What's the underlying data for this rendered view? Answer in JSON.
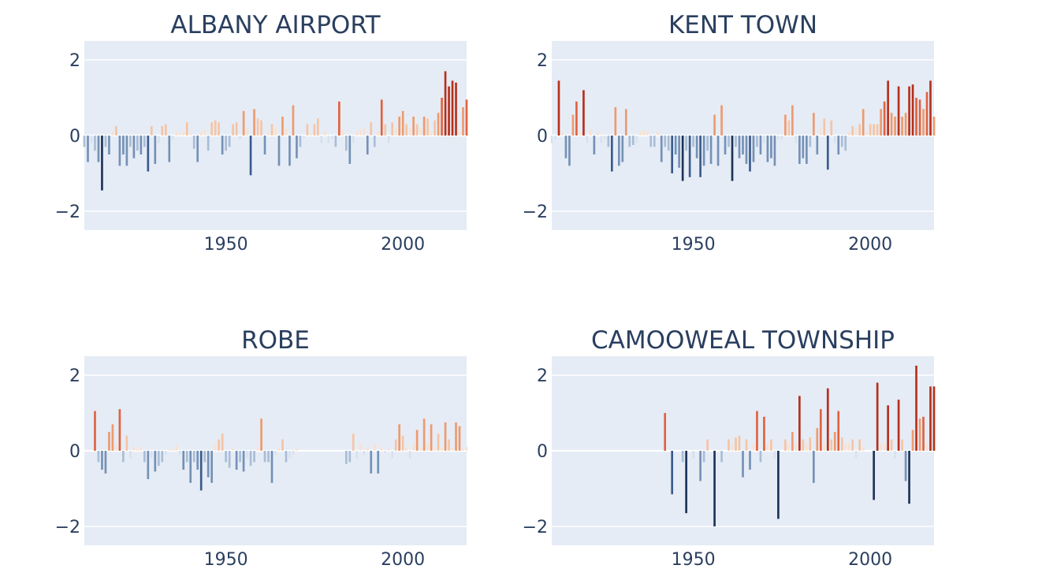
{
  "colors": {
    "plot_background": "#e5ecf6",
    "gridline": "#ffffff",
    "text": "#2a3f5f",
    "scale_negative": [
      "#1e3358",
      "#3b5b8c",
      "#7591b6",
      "#a9bdd6",
      "#d8e2ee"
    ],
    "scale_positive": [
      "#fbe1cf",
      "#f6c4a4",
      "#ee9a6e",
      "#df633f",
      "#b6301b"
    ]
  },
  "chart_data": [
    {
      "type": "bar",
      "title": "ALBANY AIRPORT",
      "xlabel": "",
      "ylabel": "",
      "xlim": [
        1910,
        2018
      ],
      "ylim": [
        -2.5,
        2.5
      ],
      "xticks": [
        1950,
        2000
      ],
      "yticks": [
        -2,
        0,
        2
      ],
      "ytick_labels": [
        "−2",
        "0",
        "2"
      ],
      "grid": true,
      "x": [
        1910,
        1911,
        1912,
        1913,
        1914,
        1915,
        1916,
        1917,
        1918,
        1919,
        1920,
        1921,
        1922,
        1923,
        1924,
        1925,
        1926,
        1927,
        1928,
        1929,
        1930,
        1931,
        1932,
        1933,
        1934,
        1935,
        1936,
        1937,
        1938,
        1939,
        1940,
        1941,
        1942,
        1943,
        1944,
        1945,
        1946,
        1947,
        1948,
        1949,
        1950,
        1951,
        1952,
        1953,
        1954,
        1955,
        1956,
        1957,
        1958,
        1959,
        1960,
        1961,
        1962,
        1963,
        1964,
        1965,
        1966,
        1967,
        1968,
        1969,
        1970,
        1971,
        1972,
        1973,
        1974,
        1975,
        1976,
        1977,
        1978,
        1979,
        1980,
        1981,
        1982,
        1983,
        1984,
        1985,
        1986,
        1987,
        1988,
        1989,
        1990,
        1991,
        1992,
        1993,
        1994,
        1995,
        1996,
        1997,
        1998,
        1999,
        2000,
        2001,
        2002,
        2003,
        2004,
        2005,
        2006,
        2007,
        2008,
        2009,
        2010,
        2011,
        2012,
        2013,
        2014,
        2015,
        2016,
        2017,
        2018
      ],
      "values": [
        -0.3,
        -0.7,
        -0.2,
        -0.4,
        -0.7,
        -1.45,
        -0.3,
        -0.5,
        0.1,
        0.25,
        -0.8,
        -0.5,
        -0.8,
        -0.3,
        -0.6,
        -0.4,
        -0.5,
        -0.3,
        -0.95,
        0.25,
        -0.75,
        -0.2,
        0.25,
        0.3,
        -0.7,
        -0.1,
        0.1,
        0.05,
        0.1,
        0.35,
        0.05,
        -0.35,
        -0.7,
        0.1,
        0.15,
        -0.4,
        0.35,
        0.4,
        0.35,
        -0.5,
        -0.4,
        -0.3,
        0.3,
        0.35,
        -0.1,
        0.65,
        0.2,
        -1.05,
        0.7,
        0.45,
        0.4,
        -0.5,
        0.1,
        0.3,
        0.2,
        -0.8,
        0.5,
        0.2,
        -0.8,
        0.8,
        -0.6,
        -0.3,
        -0.05,
        0.3,
        0.05,
        0.3,
        0.45,
        -0.2,
        0.1,
        -0.2,
        -0.1,
        -0.3,
        0.9,
        0.15,
        -0.4,
        -0.75,
        -0.2,
        0.1,
        0.15,
        0.2,
        -0.5,
        0.35,
        -0.3,
        0.1,
        0.95,
        0.3,
        -0.2,
        0.35,
        0.2,
        0.5,
        0.65,
        0.3,
        0.2,
        0.5,
        0.3,
        0.2,
        0.5,
        0.45,
        0.1,
        0.4,
        0.6,
        1.0,
        1.7,
        1.3,
        1.45,
        1.4,
        0.1,
        0.75,
        0.95
      ]
    },
    {
      "type": "bar",
      "title": "KENT TOWN",
      "xlabel": "",
      "ylabel": "",
      "xlim": [
        1910,
        2018
      ],
      "ylim": [
        -2.5,
        2.5
      ],
      "xticks": [
        1950,
        2000
      ],
      "yticks": [
        -2,
        0,
        2
      ],
      "ytick_labels": [
        "−2",
        "0",
        "2"
      ],
      "grid": true,
      "x": [
        1910,
        1911,
        1912,
        1913,
        1914,
        1915,
        1916,
        1917,
        1918,
        1919,
        1920,
        1921,
        1922,
        1923,
        1924,
        1925,
        1926,
        1927,
        1928,
        1929,
        1930,
        1931,
        1932,
        1933,
        1934,
        1935,
        1936,
        1937,
        1938,
        1939,
        1940,
        1941,
        1942,
        1943,
        1944,
        1945,
        1946,
        1947,
        1948,
        1949,
        1950,
        1951,
        1952,
        1953,
        1954,
        1955,
        1956,
        1957,
        1958,
        1959,
        1960,
        1961,
        1962,
        1963,
        1964,
        1965,
        1966,
        1967,
        1968,
        1969,
        1970,
        1971,
        1972,
        1973,
        1974,
        1975,
        1976,
        1977,
        1978,
        1979,
        1980,
        1981,
        1982,
        1983,
        1984,
        1985,
        1986,
        1987,
        1988,
        1989,
        1990,
        1991,
        1992,
        1993,
        1994,
        1995,
        1996,
        1997,
        1998,
        1999,
        2000,
        2001,
        2002,
        2003,
        2004,
        2005,
        2006,
        2007,
        2008,
        2009,
        2010,
        2011,
        2012,
        2013,
        2014,
        2015,
        2016,
        2017,
        2018
      ],
      "values": [
        -0.2,
        -0.1,
        1.45,
        0.1,
        -0.6,
        -0.8,
        0.55,
        0.9,
        0.1,
        1.2,
        -0.2,
        0.15,
        -0.5,
        0.1,
        -0.2,
        -0.1,
        -0.3,
        -0.95,
        0.75,
        -0.8,
        -0.7,
        0.7,
        -0.3,
        -0.25,
        -0.2,
        0.1,
        0.15,
        0.1,
        -0.3,
        -0.3,
        0.1,
        -0.7,
        -0.3,
        -0.4,
        -1.0,
        -0.5,
        -0.85,
        -1.2,
        -0.4,
        -1.1,
        -0.3,
        -0.6,
        -1.1,
        -0.8,
        -0.4,
        -0.75,
        0.55,
        -0.8,
        0.8,
        -0.5,
        -0.3,
        -1.2,
        -0.3,
        -0.6,
        -0.5,
        -0.75,
        -0.95,
        -0.7,
        -0.3,
        -0.5,
        -0.2,
        -0.7,
        -0.6,
        -0.8,
        -0.1,
        -0.1,
        0.55,
        0.4,
        0.8,
        -0.2,
        -0.75,
        -0.6,
        -0.75,
        -0.3,
        0.6,
        -0.5,
        0.2,
        0.45,
        -0.9,
        0.4,
        -0.2,
        -0.5,
        -0.3,
        -0.4,
        0.1,
        0.25,
        0.2,
        0.3,
        0.7,
        0.1,
        0.3,
        0.3,
        0.3,
        0.7,
        0.9,
        1.45,
        0.6,
        0.5,
        1.3,
        0.5,
        0.6,
        1.3,
        1.35,
        1.0,
        0.95,
        0.7,
        1.15,
        1.45,
        0.5
      ]
    },
    {
      "type": "bar",
      "title": "ROBE",
      "xlabel": "",
      "ylabel": "",
      "xlim": [
        1910,
        2018
      ],
      "ylim": [
        -2.5,
        2.5
      ],
      "xticks": [
        1950,
        2000
      ],
      "yticks": [
        -2,
        0,
        2
      ],
      "ytick_labels": [
        "−2",
        "0",
        "2"
      ],
      "grid": true,
      "x": [
        1913,
        1914,
        1915,
        1916,
        1917,
        1918,
        1919,
        1920,
        1921,
        1922,
        1923,
        1924,
        1925,
        1926,
        1927,
        1928,
        1929,
        1930,
        1931,
        1932,
        1933,
        1934,
        1935,
        1936,
        1937,
        1938,
        1939,
        1940,
        1941,
        1942,
        1943,
        1944,
        1945,
        1946,
        1947,
        1948,
        1949,
        1950,
        1951,
        1952,
        1953,
        1954,
        1955,
        1956,
        1957,
        1958,
        1959,
        1960,
        1961,
        1962,
        1963,
        1964,
        1965,
        1966,
        1967,
        1968,
        1969,
        1970,
        1984,
        1985,
        1986,
        1987,
        1988,
        1989,
        1990,
        1991,
        1992,
        1993,
        1994,
        1995,
        1996,
        1997,
        1998,
        1999,
        2000,
        2001,
        2002,
        2003,
        2004,
        2005,
        2006,
        2007,
        2008,
        2009,
        2010,
        2011,
        2012,
        2013,
        2014,
        2015,
        2016,
        2017,
        2018
      ],
      "values": [
        1.05,
        -0.3,
        -0.5,
        -0.6,
        0.5,
        0.7,
        0.2,
        1.1,
        -0.3,
        0.4,
        -0.2,
        0.1,
        0.05,
        0.1,
        -0.3,
        -0.75,
        -0.2,
        -0.55,
        -0.4,
        -0.3,
        -0.1,
        0.05,
        0.05,
        0.15,
        -0.1,
        -0.5,
        -0.3,
        -0.85,
        -0.3,
        -0.5,
        -1.05,
        -0.3,
        -0.7,
        -0.85,
        0.2,
        0.3,
        0.45,
        -0.3,
        -0.45,
        0.1,
        -0.5,
        -0.3,
        -0.55,
        -0.2,
        -0.4,
        -0.3,
        0.1,
        0.85,
        -0.3,
        -0.3,
        -0.85,
        -0.1,
        0.1,
        0.3,
        -0.3,
        -0.2,
        -0.1,
        0.05,
        -0.35,
        -0.3,
        0.45,
        -0.2,
        0.2,
        -0.1,
        0.1,
        -0.6,
        0.2,
        -0.6,
        0.1,
        -0.05,
        0.05,
        -0.2,
        0.3,
        0.7,
        0.4,
        0.1,
        -0.2,
        0.2,
        0.55,
        0.1,
        0.85,
        0.2,
        0.7,
        0.1,
        0.45,
        0.1,
        0.75,
        0.3,
        0.1,
        0.75,
        0.65,
        0.05,
        0.1
      ]
    },
    {
      "type": "bar",
      "title": "CAMOOWEAL TOWNSHIP",
      "xlabel": "",
      "ylabel": "",
      "xlim": [
        1910,
        2018
      ],
      "ylim": [
        -2.5,
        2.5
      ],
      "xticks": [
        1950,
        2000
      ],
      "yticks": [
        -2,
        0,
        2
      ],
      "ytick_labels": [
        "−2",
        "0",
        "2"
      ],
      "grid": true,
      "x": [
        1942,
        1944,
        1947,
        1948,
        1950,
        1952,
        1953,
        1954,
        1956,
        1958,
        1960,
        1961,
        1962,
        1963,
        1964,
        1965,
        1966,
        1967,
        1968,
        1969,
        1970,
        1971,
        1972,
        1973,
        1974,
        1976,
        1977,
        1978,
        1979,
        1980,
        1981,
        1982,
        1983,
        1984,
        1985,
        1986,
        1987,
        1988,
        1989,
        1990,
        1991,
        1992,
        1993,
        1994,
        1995,
        1996,
        1997,
        1998,
        2001,
        2002,
        2003,
        2004,
        2005,
        2006,
        2007,
        2008,
        2009,
        2010,
        2011,
        2012,
        2013,
        2014,
        2015,
        2016,
        2017,
        2018
      ],
      "values": [
        1.0,
        -1.15,
        -0.3,
        -1.65,
        -0.2,
        -0.8,
        -0.3,
        0.3,
        -2.0,
        -0.3,
        0.3,
        0.2,
        0.35,
        0.4,
        -0.7,
        0.3,
        -0.5,
        0.2,
        1.05,
        -0.3,
        0.9,
        0.2,
        0.3,
        -0.2,
        -1.8,
        0.3,
        0.2,
        0.5,
        0.2,
        1.45,
        0.3,
        0.2,
        0.35,
        -0.85,
        0.6,
        1.1,
        0.2,
        1.65,
        0.3,
        0.5,
        1.05,
        0.35,
        0.2,
        0.2,
        0.3,
        -0.2,
        0.3,
        0.1,
        -1.3,
        1.8,
        0.2,
        0.2,
        1.2,
        0.3,
        -0.2,
        1.35,
        0.3,
        -0.8,
        -1.4,
        0.55,
        2.25,
        0.85,
        0.9,
        0.2,
        1.7,
        1.7
      ]
    }
  ]
}
